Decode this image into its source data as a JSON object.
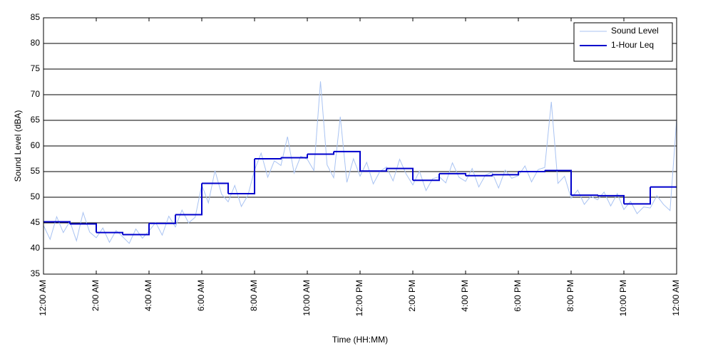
{
  "chart_data": {
    "type": "line",
    "xlabel": "Time (HH:MM)",
    "ylabel": "Sound Level (dBA)",
    "xlim": [
      0,
      24
    ],
    "xticks": [
      {
        "value": 0,
        "label": "12:00 AM"
      },
      {
        "value": 2,
        "label": "2:00 AM"
      },
      {
        "value": 4,
        "label": "4:00 AM"
      },
      {
        "value": 6,
        "label": "6:00 AM"
      },
      {
        "value": 8,
        "label": "8:00 AM"
      },
      {
        "value": 10,
        "label": "10:00 AM"
      },
      {
        "value": 12,
        "label": "12:00 PM"
      },
      {
        "value": 14,
        "label": "2:00 PM"
      },
      {
        "value": 16,
        "label": "4:00 PM"
      },
      {
        "value": 18,
        "label": "6:00 PM"
      },
      {
        "value": 20,
        "label": "8:00 PM"
      },
      {
        "value": 22,
        "label": "10:00 PM"
      },
      {
        "value": 24,
        "label": "12:00 AM"
      }
    ],
    "ylim": [
      35,
      85
    ],
    "yticks": [
      35,
      40,
      45,
      50,
      55,
      60,
      65,
      70,
      75,
      80,
      85
    ],
    "grid": true,
    "legend": "upper right",
    "series": [
      {
        "name": "Sound Level",
        "color": "#a9c3f2",
        "step": false,
        "x": [
          0,
          0.25,
          0.5,
          0.75,
          1,
          1.25,
          1.5,
          1.75,
          2,
          2.25,
          2.5,
          2.75,
          3,
          3.25,
          3.5,
          3.75,
          4,
          4.25,
          4.5,
          4.75,
          5,
          5.25,
          5.5,
          5.75,
          6,
          6.25,
          6.5,
          6.75,
          7,
          7.25,
          7.5,
          7.75,
          8,
          8.25,
          8.5,
          8.75,
          9,
          9.25,
          9.5,
          9.75,
          10,
          10.25,
          10.5,
          10.75,
          11,
          11.25,
          11.5,
          11.75,
          12,
          12.25,
          12.5,
          12.75,
          13,
          13.25,
          13.5,
          13.75,
          14,
          14.25,
          14.5,
          14.75,
          15,
          15.25,
          15.5,
          15.75,
          16,
          16.25,
          16.5,
          16.75,
          17,
          17.25,
          17.5,
          17.75,
          18,
          18.25,
          18.5,
          18.75,
          19,
          19.25,
          19.5,
          19.75,
          20,
          20.25,
          20.5,
          20.75,
          21,
          21.25,
          21.5,
          21.75,
          22,
          22.25,
          22.5,
          22.75,
          23,
          23.25,
          23.5,
          23.75,
          24
        ],
        "values": [
          44.5,
          41.8,
          46.2,
          43.1,
          45.3,
          41.5,
          47.0,
          43.2,
          42.1,
          44.0,
          41.2,
          43.5,
          42.3,
          41.0,
          43.8,
          42.0,
          43.4,
          45.1,
          42.6,
          46.3,
          44.2,
          47.5,
          45.0,
          46.1,
          52.4,
          48.9,
          55.2,
          50.6,
          49.1,
          52.3,
          48.2,
          50.4,
          55.3,
          58.6,
          53.9,
          57.1,
          56.2,
          61.8,
          54.7,
          58.0,
          57.4,
          55.2,
          72.6,
          56.3,
          53.8,
          65.7,
          52.9,
          57.5,
          54.1,
          56.8,
          52.6,
          55.0,
          55.9,
          53.2,
          57.4,
          54.5,
          52.4,
          55.1,
          51.3,
          53.6,
          54.0,
          52.8,
          56.7,
          53.9,
          53.1,
          55.6,
          52.0,
          54.3,
          54.9,
          51.8,
          55.3,
          53.7,
          54.2,
          56.1,
          53.0,
          55.4,
          55.8,
          68.6,
          52.7,
          54.1,
          49.8,
          51.4,
          48.6,
          50.2,
          49.5,
          51.0,
          48.3,
          50.7,
          47.6,
          49.2,
          46.8,
          48.1,
          47.9,
          50.3,
          48.6,
          47.4,
          65.2
        ]
      },
      {
        "name": "1-Hour Leq",
        "color": "#0000cc",
        "step": true,
        "x": [
          0,
          1,
          2,
          3,
          4,
          5,
          6,
          7,
          8,
          9,
          10,
          11,
          12,
          13,
          14,
          15,
          16,
          17,
          18,
          19,
          20,
          21,
          22,
          23
        ],
        "values": [
          45.2,
          44.8,
          43.1,
          42.7,
          44.9,
          46.6,
          52.7,
          50.7,
          57.5,
          57.7,
          58.4,
          58.9,
          55.1,
          55.6,
          53.3,
          54.6,
          54.2,
          54.4,
          55.0,
          55.2,
          50.4,
          50.3,
          48.7,
          52.0
        ]
      }
    ]
  }
}
